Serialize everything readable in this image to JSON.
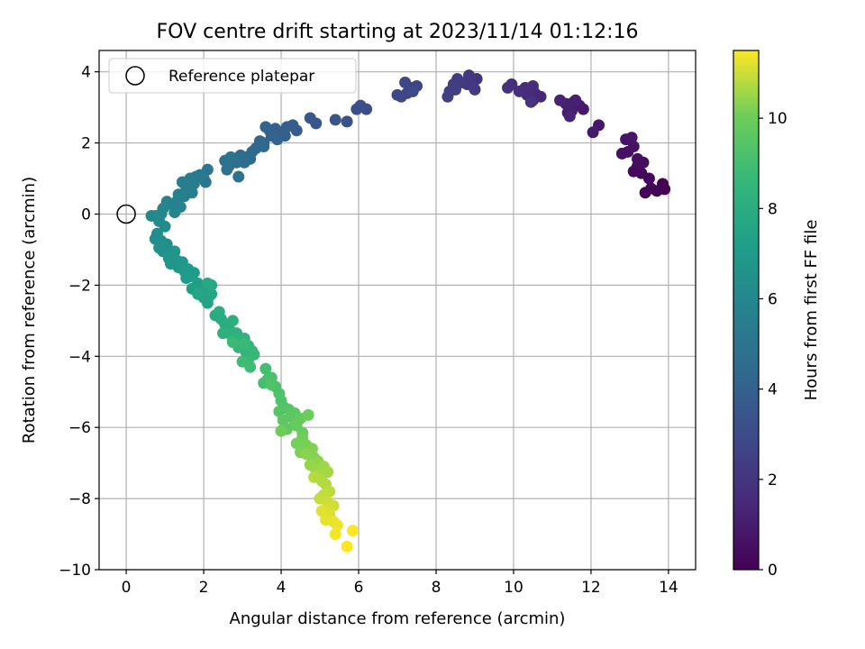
{
  "chart_data": {
    "type": "scatter",
    "title": "FOV centre drift starting at 2023/11/14 01:12:16",
    "xlabel": "Angular distance from reference (arcmin)",
    "ylabel": "Rotation from reference (arcmin)",
    "xlim": [
      -0.7,
      14.7
    ],
    "ylim": [
      -10,
      4.6
    ],
    "xticks": [
      0,
      2,
      4,
      6,
      8,
      10,
      12,
      14
    ],
    "yticks": [
      -10,
      -8,
      -6,
      -4,
      -2,
      0,
      2,
      4
    ],
    "grid": true,
    "legend": {
      "placement": "top-left",
      "entries": [
        {
          "label": "Reference platepar",
          "marker": "open-circle"
        }
      ]
    },
    "reference_point": {
      "x": 0,
      "y": 0
    },
    "colorbar": {
      "label": "Hours from first FF file",
      "colormap": "viridis",
      "range": [
        0,
        11.5
      ],
      "ticks": [
        0,
        2,
        4,
        6,
        8,
        10
      ]
    },
    "points": [
      [
        13.9,
        0.7,
        0.0
      ],
      [
        13.85,
        0.85,
        0.05
      ],
      [
        13.7,
        0.65,
        0.1
      ],
      [
        13.55,
        0.72,
        0.15
      ],
      [
        13.4,
        0.6,
        0.2
      ],
      [
        13.5,
        1.0,
        0.25
      ],
      [
        13.3,
        1.15,
        0.3
      ],
      [
        13.1,
        1.2,
        0.35
      ],
      [
        13.2,
        1.35,
        0.4
      ],
      [
        13.35,
        1.45,
        0.45
      ],
      [
        13.2,
        1.55,
        0.5
      ],
      [
        12.95,
        1.75,
        0.55
      ],
      [
        12.8,
        1.7,
        0.6
      ],
      [
        13.1,
        1.9,
        0.65
      ],
      [
        12.9,
        2.1,
        0.7
      ],
      [
        13.05,
        2.15,
        0.75
      ],
      [
        12.2,
        2.5,
        0.8
      ],
      [
        12.05,
        2.3,
        0.85
      ],
      [
        11.8,
        2.95,
        0.9
      ],
      [
        11.7,
        3.05,
        0.95
      ],
      [
        11.55,
        3.15,
        1.0
      ],
      [
        11.4,
        2.85,
        1.05
      ],
      [
        11.5,
        2.9,
        1.1
      ],
      [
        11.35,
        3.1,
        1.15
      ],
      [
        11.6,
        3.2,
        1.2
      ],
      [
        11.2,
        3.2,
        1.25
      ],
      [
        11.45,
        2.75,
        1.3
      ],
      [
        10.7,
        3.3,
        1.4
      ],
      [
        10.5,
        3.2,
        1.45
      ],
      [
        10.55,
        3.4,
        1.5
      ],
      [
        10.45,
        3.5,
        1.55
      ],
      [
        10.35,
        3.35,
        1.6
      ],
      [
        10.5,
        3.6,
        1.65
      ],
      [
        10.3,
        3.55,
        1.7
      ],
      [
        10.15,
        3.45,
        1.75
      ],
      [
        9.95,
        3.65,
        1.8
      ],
      [
        9.85,
        3.55,
        1.85
      ],
      [
        10.45,
        3.15,
        1.9
      ],
      [
        9.05,
        3.8,
        2.0
      ],
      [
        8.95,
        3.6,
        2.05
      ],
      [
        8.8,
        3.65,
        2.1
      ],
      [
        8.85,
        3.9,
        2.15
      ],
      [
        9.0,
        3.5,
        2.2
      ],
      [
        8.65,
        3.7,
        2.25
      ],
      [
        8.55,
        3.8,
        2.3
      ],
      [
        8.45,
        3.65,
        2.35
      ],
      [
        8.35,
        3.45,
        2.4
      ],
      [
        8.5,
        3.5,
        2.45
      ],
      [
        8.3,
        3.3,
        2.5
      ],
      [
        7.5,
        3.6,
        2.6
      ],
      [
        7.35,
        3.55,
        2.65
      ],
      [
        7.25,
        3.4,
        2.7
      ],
      [
        7.1,
        3.3,
        2.75
      ],
      [
        7.2,
        3.7,
        2.8
      ],
      [
        7.0,
        3.35,
        2.85
      ],
      [
        7.4,
        3.45,
        2.9
      ],
      [
        6.2,
        2.95,
        3.1
      ],
      [
        6.05,
        3.05,
        3.15
      ],
      [
        5.95,
        2.95,
        3.2
      ],
      [
        5.7,
        2.6,
        3.3
      ],
      [
        5.4,
        2.65,
        3.4
      ],
      [
        4.9,
        2.55,
        3.5
      ],
      [
        4.75,
        2.7,
        3.55
      ],
      [
        4.4,
        2.35,
        3.7
      ],
      [
        4.3,
        2.5,
        3.75
      ],
      [
        4.15,
        2.45,
        3.8
      ],
      [
        4.0,
        2.3,
        3.85
      ],
      [
        4.1,
        2.2,
        3.9
      ],
      [
        3.85,
        2.4,
        3.95
      ],
      [
        3.7,
        2.35,
        4.0
      ],
      [
        3.9,
        2.1,
        4.05
      ],
      [
        3.75,
        2.2,
        4.1
      ],
      [
        3.6,
        2.45,
        4.15
      ],
      [
        3.55,
        2.0,
        4.2
      ],
      [
        3.45,
        2.05,
        4.25
      ],
      [
        3.35,
        1.85,
        4.3
      ],
      [
        3.55,
        1.9,
        4.35
      ],
      [
        3.25,
        1.75,
        4.4
      ],
      [
        3.2,
        1.55,
        4.45
      ],
      [
        3.1,
        1.6,
        4.5
      ],
      [
        3.05,
        1.45,
        4.55
      ],
      [
        2.95,
        1.65,
        4.6
      ],
      [
        2.85,
        1.45,
        4.65
      ],
      [
        2.75,
        1.55,
        4.7
      ],
      [
        2.65,
        1.35,
        4.75
      ],
      [
        2.55,
        1.5,
        4.8
      ],
      [
        2.6,
        1.25,
        4.85
      ],
      [
        2.9,
        1.05,
        4.9
      ],
      [
        2.7,
        1.6,
        4.95
      ],
      [
        2.1,
        1.25,
        5.1
      ],
      [
        2.0,
        1.0,
        5.15
      ],
      [
        2.05,
        0.9,
        5.2
      ],
      [
        1.9,
        1.1,
        5.25
      ],
      [
        1.8,
        1.05,
        5.3
      ],
      [
        1.75,
        0.85,
        5.35
      ],
      [
        1.65,
        1.0,
        5.4
      ],
      [
        1.55,
        0.75,
        5.45
      ],
      [
        1.45,
        0.9,
        5.5
      ],
      [
        1.7,
        0.6,
        5.55
      ],
      [
        1.5,
        0.5,
        5.6
      ],
      [
        1.35,
        0.55,
        5.65
      ],
      [
        1.3,
        0.35,
        5.7
      ],
      [
        1.2,
        0.25,
        5.75
      ],
      [
        1.05,
        0.35,
        5.8
      ],
      [
        1.4,
        0.2,
        5.85
      ],
      [
        1.25,
        0.05,
        5.9
      ],
      [
        0.95,
        0.15,
        5.95
      ],
      [
        0.9,
        0.0,
        6.0
      ],
      [
        0.75,
        -0.05,
        6.05
      ],
      [
        0.65,
        -0.05,
        6.1
      ],
      [
        0.85,
        -0.2,
        6.15
      ],
      [
        1.0,
        -0.35,
        6.2
      ],
      [
        0.8,
        -0.55,
        6.25
      ],
      [
        0.75,
        -0.7,
        6.3
      ],
      [
        0.9,
        -0.75,
        6.35
      ],
      [
        1.05,
        -0.85,
        6.4
      ],
      [
        0.85,
        -0.95,
        6.45
      ],
      [
        0.95,
        -1.05,
        6.5
      ],
      [
        1.15,
        -1.15,
        6.6
      ],
      [
        1.25,
        -1.05,
        6.65
      ],
      [
        1.1,
        -1.25,
        6.7
      ],
      [
        1.3,
        -1.3,
        6.75
      ],
      [
        1.15,
        -1.4,
        6.8
      ],
      [
        1.35,
        -1.5,
        6.85
      ],
      [
        1.45,
        -1.35,
        6.9
      ],
      [
        1.5,
        -1.6,
        6.95
      ],
      [
        1.6,
        -1.55,
        7.0
      ],
      [
        1.65,
        -1.75,
        7.05
      ],
      [
        1.55,
        -1.8,
        7.1
      ],
      [
        1.75,
        -1.65,
        7.15
      ],
      [
        1.85,
        -1.95,
        7.2
      ],
      [
        1.7,
        -2.1,
        7.3
      ],
      [
        1.95,
        -2.2,
        7.35
      ],
      [
        2.05,
        -2.1,
        7.4
      ],
      [
        2.15,
        -2.3,
        7.45
      ],
      [
        2.0,
        -2.35,
        7.5
      ],
      [
        2.1,
        -2.5,
        7.55
      ],
      [
        2.2,
        -2.25,
        7.6
      ],
      [
        1.85,
        -2.25,
        7.65
      ],
      [
        2.2,
        -2.0,
        7.7
      ],
      [
        2.1,
        -1.95,
        7.75
      ],
      [
        2.3,
        -2.85,
        7.85
      ],
      [
        2.45,
        -2.95,
        7.9
      ],
      [
        2.55,
        -3.1,
        7.95
      ],
      [
        2.65,
        -3.2,
        8.0
      ],
      [
        2.4,
        -2.75,
        8.05
      ],
      [
        2.75,
        -3.0,
        8.1
      ],
      [
        2.65,
        -3.35,
        8.15
      ],
      [
        2.5,
        -3.35,
        8.2
      ],
      [
        2.85,
        -3.35,
        8.25
      ],
      [
        2.95,
        -3.5,
        8.3
      ],
      [
        2.75,
        -3.55,
        8.35
      ],
      [
        3.05,
        -3.5,
        8.4
      ],
      [
        3.15,
        -3.7,
        8.45
      ],
      [
        3.1,
        -3.9,
        8.5
      ],
      [
        2.9,
        -3.75,
        8.55
      ],
      [
        3.25,
        -3.85,
        8.6
      ],
      [
        3.3,
        -3.95,
        8.65
      ],
      [
        3.15,
        -4.1,
        8.7
      ],
      [
        3.05,
        -3.65,
        8.75
      ],
      [
        2.75,
        -3.6,
        8.8
      ],
      [
        3.2,
        -4.3,
        8.85
      ],
      [
        3.0,
        -4.15,
        8.9
      ],
      [
        3.6,
        -4.35,
        9.0
      ],
      [
        3.65,
        -4.65,
        9.05
      ],
      [
        3.55,
        -4.75,
        9.1
      ],
      [
        3.75,
        -4.6,
        9.15
      ],
      [
        3.85,
        -4.85,
        9.2
      ],
      [
        3.95,
        -5.05,
        9.25
      ],
      [
        3.75,
        -4.8,
        9.3
      ],
      [
        4.0,
        -5.25,
        9.35
      ],
      [
        4.1,
        -5.45,
        9.4
      ],
      [
        3.95,
        -5.55,
        9.45
      ],
      [
        4.2,
        -5.5,
        9.5
      ],
      [
        4.35,
        -5.6,
        9.55
      ],
      [
        4.25,
        -5.7,
        9.6
      ],
      [
        4.05,
        -5.8,
        9.65
      ],
      [
        4.15,
        -6.05,
        9.7
      ],
      [
        4.35,
        -5.9,
        9.75
      ],
      [
        4.5,
        -5.75,
        9.8
      ],
      [
        4.4,
        -5.95,
        9.85
      ],
      [
        4.55,
        -6.15,
        9.9
      ],
      [
        4.7,
        -5.65,
        9.95
      ],
      [
        4.0,
        -6.1,
        10.0
      ],
      [
        4.55,
        -6.3,
        10.05
      ],
      [
        4.4,
        -6.45,
        10.1
      ],
      [
        4.65,
        -6.5,
        10.15
      ],
      [
        4.5,
        -6.7,
        10.2
      ],
      [
        4.8,
        -6.6,
        10.25
      ],
      [
        4.85,
        -6.85,
        10.3
      ],
      [
        4.65,
        -6.75,
        10.35
      ],
      [
        4.95,
        -6.95,
        10.4
      ],
      [
        4.75,
        -7.05,
        10.45
      ],
      [
        4.9,
        -7.2,
        10.5
      ],
      [
        5.1,
        -7.1,
        10.55
      ],
      [
        5.2,
        -7.25,
        10.6
      ],
      [
        4.95,
        -7.35,
        10.65
      ],
      [
        5.05,
        -7.5,
        10.7
      ],
      [
        5.15,
        -7.6,
        10.75
      ],
      [
        4.85,
        -7.4,
        10.8
      ],
      [
        5.25,
        -7.8,
        10.85
      ],
      [
        5.1,
        -7.9,
        10.9
      ],
      [
        5.0,
        -8.0,
        10.95
      ],
      [
        5.2,
        -8.1,
        11.0
      ],
      [
        5.35,
        -8.2,
        11.05
      ],
      [
        5.15,
        -8.3,
        11.1
      ],
      [
        5.25,
        -8.45,
        11.15
      ],
      [
        5.05,
        -8.35,
        11.2
      ],
      [
        5.15,
        -8.6,
        11.25
      ],
      [
        5.35,
        -8.65,
        11.3
      ],
      [
        5.45,
        -8.75,
        11.35
      ],
      [
        5.4,
        -9.0,
        11.4
      ],
      [
        5.85,
        -8.9,
        11.45
      ],
      [
        5.7,
        -9.35,
        11.5
      ]
    ]
  }
}
